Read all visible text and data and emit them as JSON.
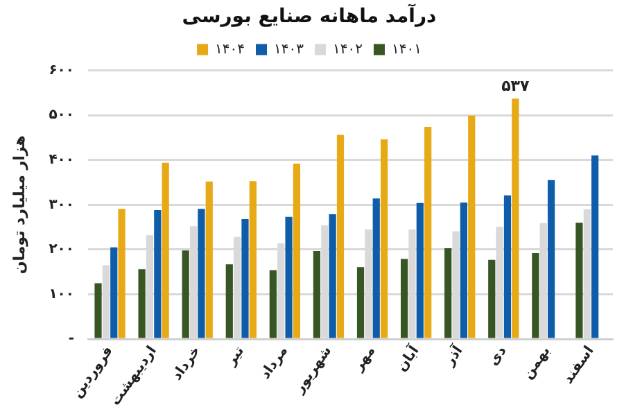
{
  "chart_data": {
    "type": "bar",
    "title": "درآمد ماهانه صنایع بورسی",
    "ylabel": "هزار میلیارد تومان",
    "categories": [
      "فروردین",
      "اردیبهشت",
      "خرداد",
      "تیر",
      "مرداد",
      "شهریور",
      "مهر",
      "آبان",
      "آذر",
      "دی",
      "بهمن",
      "اسفند"
    ],
    "series": [
      {
        "name": "۱۴۰۱",
        "color": "#375623",
        "values": [
          125,
          156,
          198,
          167,
          154,
          197,
          161,
          179,
          203,
          177,
          192,
          260
        ]
      },
      {
        "name": "۱۴۰۲",
        "color": "#d9d9d9",
        "values": [
          165,
          232,
          252,
          228,
          214,
          254,
          245,
          245,
          241,
          251,
          259,
          290
        ]
      },
      {
        "name": "۱۴۰۳",
        "color": "#0f5ca8",
        "values": [
          205,
          288,
          291,
          268,
          273,
          279,
          314,
          304,
          305,
          321,
          355,
          410
        ]
      },
      {
        "name": "۱۴۰۴",
        "color": "#e8a917",
        "values": [
          291,
          394,
          352,
          353,
          392,
          456,
          446,
          474,
          499,
          537,
          null,
          null
        ],
        "value_labels": [
          null,
          null,
          null,
          null,
          null,
          null,
          null,
          null,
          null,
          "۵۳۷",
          null,
          null
        ]
      }
    ],
    "ylim": [
      0,
      600
    ],
    "yticks": [
      {
        "value": 0,
        "label": "-"
      },
      {
        "value": 100,
        "label": "۱۰۰"
      },
      {
        "value": 200,
        "label": "۲۰۰"
      },
      {
        "value": 300,
        "label": "۳۰۰"
      },
      {
        "value": 400,
        "label": "۴۰۰"
      },
      {
        "value": 500,
        "label": "۵۰۰"
      },
      {
        "value": 600,
        "label": "۶۰۰"
      }
    ],
    "grid": "y",
    "legend": "top"
  }
}
